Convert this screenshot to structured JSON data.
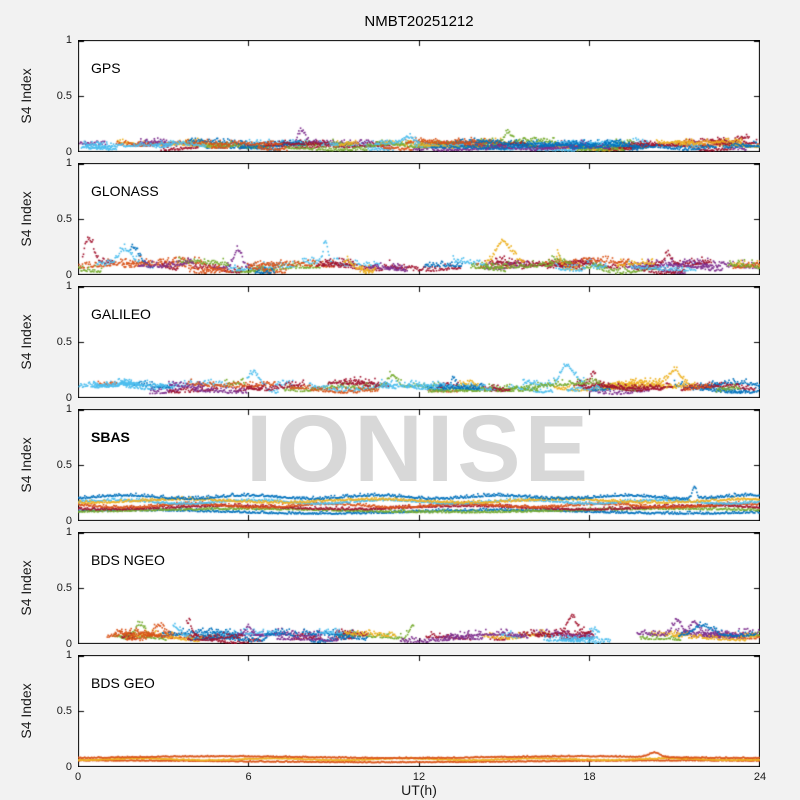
{
  "figure": {
    "watermark": "IONISE",
    "background": "#f2f2f2"
  },
  "chart_data": {
    "type": "scatter",
    "title": "NMBT20251212",
    "xlabel": "UT(h)",
    "ylabel": "S4 Index",
    "xlim": [
      0,
      24
    ],
    "ylim": [
      0,
      1
    ],
    "xticks": [
      0,
      6,
      12,
      18,
      24
    ],
    "yticks": [
      0,
      0.5,
      1
    ],
    "xtick_labels": [
      "0",
      "6",
      "12",
      "18",
      "24"
    ],
    "ytick_labels": [
      "0",
      "0.5",
      "1"
    ],
    "grid": false,
    "legend": "none",
    "subplots": 6,
    "palette": [
      "#0072BD",
      "#D95319",
      "#EDB120",
      "#7E2F8E",
      "#77AC30",
      "#A2142F",
      "#4DBEEE"
    ],
    "description": "Amplitude scintillation index S4 versus universal time for six GNSS constellations on 2025-12-12 at station NMBT; quiet conditions, values mostly 0.02-0.2 with sporadic spikes up to about 0.35",
    "panels": [
      {
        "label": "GPS",
        "bold": false,
        "typical_range": [
          0.02,
          0.15
        ],
        "max_value": 0.2,
        "render": {
          "seed": 11,
          "style": "arcs",
          "arcs": 95,
          "dur": [
            0.5,
            3.5
          ],
          "base": [
            0.02,
            0.08
          ],
          "jitter": 0.05,
          "wobble": 0.012,
          "spike_prob": 0.08,
          "spike": [
            0.04,
            0.1
          ],
          "colors": [
            "#0072BD",
            "#D95319",
            "#EDB120",
            "#7E2F8E",
            "#77AC30",
            "#A2142F",
            "#4DBEEE"
          ]
        }
      },
      {
        "label": "GLONASS",
        "bold": false,
        "typical_range": [
          0.02,
          0.2
        ],
        "max_value": 0.33,
        "render": {
          "seed": 22,
          "style": "arcs",
          "arcs": 60,
          "dur": [
            0.5,
            3.0
          ],
          "base": [
            0.03,
            0.1
          ],
          "jitter": 0.07,
          "wobble": 0.02,
          "spike_prob": 0.18,
          "spike": [
            0.06,
            0.22
          ],
          "colors": [
            "#0072BD",
            "#D95319",
            "#EDB120",
            "#7E2F8E",
            "#77AC30",
            "#A2142F",
            "#4DBEEE"
          ]
        }
      },
      {
        "label": "GALILEO",
        "bold": false,
        "typical_range": [
          0.05,
          0.18
        ],
        "max_value": 0.35,
        "render": {
          "seed": 33,
          "style": "arcs",
          "arcs": 55,
          "dur": [
            0.6,
            3.2
          ],
          "base": [
            0.05,
            0.12
          ],
          "jitter": 0.06,
          "wobble": 0.018,
          "spike_prob": 0.15,
          "spike": [
            0.06,
            0.24
          ],
          "colors": [
            "#0072BD",
            "#D95319",
            "#EDB120",
            "#7E2F8E",
            "#77AC30",
            "#A2142F",
            "#4DBEEE"
          ]
        }
      },
      {
        "label": "SBAS",
        "bold": true,
        "typical_range": [
          0.08,
          0.22
        ],
        "max_value": 0.3,
        "render": {
          "seed": 44,
          "style": "continuous",
          "traces": 7,
          "dur": [
            24,
            24
          ],
          "base": [
            0.07,
            0.2
          ],
          "jitter": 0.03,
          "wobble": 0.015,
          "spike_prob": 0.3,
          "spike": [
            0.04,
            0.12
          ],
          "colors": [
            "#0072BD",
            "#77AC30",
            "#A2142F",
            "#D95319",
            "#4DBEEE",
            "#EDB120",
            "#0072BD"
          ]
        }
      },
      {
        "label": "BDS NGEO",
        "bold": false,
        "typical_range": [
          0.02,
          0.15
        ],
        "max_value": 0.28,
        "render": {
          "seed": 55,
          "style": "arcs",
          "arcs": 55,
          "dur": [
            0.5,
            3.0
          ],
          "base": [
            0.02,
            0.09
          ],
          "jitter": 0.06,
          "wobble": 0.015,
          "spike_prob": 0.12,
          "spike": [
            0.05,
            0.18
          ],
          "colors": [
            "#0072BD",
            "#D95319",
            "#EDB120",
            "#7E2F8E",
            "#77AC30",
            "#A2142F",
            "#4DBEEE"
          ]
        }
      },
      {
        "label": "BDS GEO",
        "bold": false,
        "typical_range": [
          0.05,
          0.1
        ],
        "max_value": 0.13,
        "render": {
          "seed": 66,
          "style": "continuous",
          "traces": 3,
          "dur": [
            24,
            24
          ],
          "base": [
            0.055,
            0.085
          ],
          "jitter": 0.012,
          "wobble": 0.008,
          "spike_prob": 0.3,
          "spike": [
            0.02,
            0.05
          ],
          "colors": [
            "#D95319",
            "#EDB120",
            "#D95319"
          ]
        }
      }
    ]
  }
}
